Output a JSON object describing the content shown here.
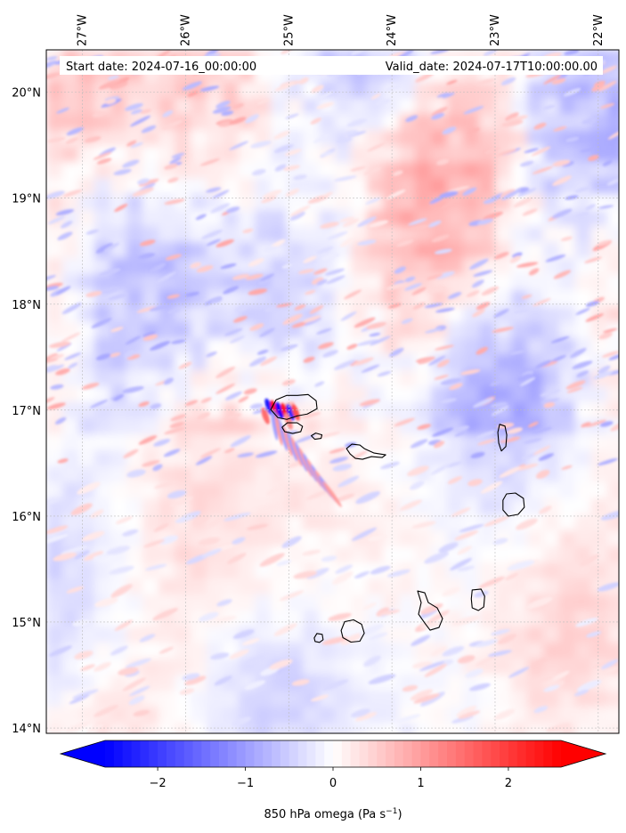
{
  "header": {
    "start_date": "Start date: 2024-07-16_00:00:00",
    "valid_date": "Valid_date: 2024-07-17T10:00:00.00"
  },
  "map": {
    "lon_labels": [
      "27°W",
      "26°W",
      "25°W",
      "24°W",
      "23°W",
      "22°W"
    ],
    "lon_values": [
      -27,
      -26,
      -25,
      -24,
      -23,
      -22
    ],
    "lat_labels": [
      "20°N",
      "19°N",
      "18°N",
      "17°N",
      "16°N",
      "15°N",
      "14°N"
    ],
    "lat_values": [
      20,
      19,
      18,
      17,
      16,
      15,
      14
    ],
    "extent": {
      "lon_min": -27.35,
      "lon_max": -21.8,
      "lat_min": 13.95,
      "lat_max": 20.4
    },
    "field": "850 hPa omega",
    "positive_color": "#ff0000",
    "negative_color": "#0000ff",
    "neutral_color": "#ffffff",
    "islands": [
      {
        "name": "Santo Antão",
        "lon": -24.95,
        "lat": 17.03
      },
      {
        "name": "São Vicente",
        "lon": -24.97,
        "lat": 16.83
      },
      {
        "name": "Santa Luzia",
        "lon": -24.73,
        "lat": 16.75
      },
      {
        "name": "São Nicolau",
        "lon": -24.25,
        "lat": 16.62
      },
      {
        "name": "Sal",
        "lon": -22.93,
        "lat": 16.74
      },
      {
        "name": "Boa Vista",
        "lon": -22.82,
        "lat": 16.1
      },
      {
        "name": "Maio",
        "lon": -23.17,
        "lat": 15.21
      },
      {
        "name": "Santiago",
        "lon": -23.63,
        "lat": 15.1
      },
      {
        "name": "Fogo",
        "lon": -24.38,
        "lat": 14.92
      },
      {
        "name": "Brava",
        "lon": -24.71,
        "lat": 14.85
      }
    ]
  },
  "colorbar": {
    "ticks": [
      -2,
      -1,
      0,
      1,
      2
    ],
    "tick_labels": [
      "−2",
      "−1",
      "0",
      "1",
      "2"
    ],
    "min": -2.6,
    "max": 2.6,
    "label_main": "850 hPa omega (Pa s",
    "label_exp": "−1",
    "label_close": ")"
  }
}
